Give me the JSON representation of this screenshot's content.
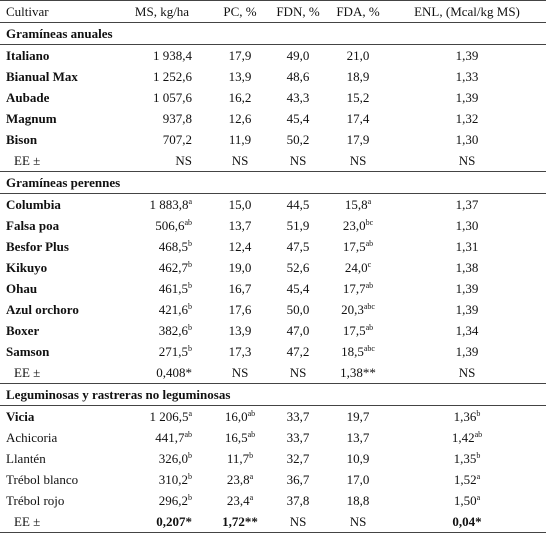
{
  "table": {
    "header": [
      "Cultivar",
      "MS, kg/ha",
      "PC, %",
      "FDN, %",
      "FDA, %",
      "ENL, (Mcal/kg MS)"
    ],
    "sections": [
      {
        "title": "Gramíneas anuales",
        "rows": [
          [
            "Italiano",
            "1 938,4",
            "17,9",
            "49,0",
            "21,0",
            "1,39"
          ],
          [
            "Bianual Max",
            "1 252,6",
            "13,9",
            "48,6",
            "18,9",
            "1,33"
          ],
          [
            "Aubade",
            "1 057,6",
            "16,2",
            "43,3",
            "15,2",
            "1,39"
          ],
          [
            "Magnum",
            "937,8",
            "12,6",
            "45,4",
            "17,4",
            "1,32"
          ],
          [
            "Bison",
            "707,2",
            "11,9",
            "50,2",
            "17,9",
            "1,30"
          ],
          [
            "EE ±",
            "NS",
            "NS",
            "NS",
            "NS",
            "NS"
          ]
        ]
      },
      {
        "title": "Gramíneas perennes",
        "rows": [
          [
            "Columbia",
            {
              "text": "1 883,8",
              "sup": "a"
            },
            "15,0",
            "44,5",
            {
              "text": "15,8",
              "sup": "a"
            },
            "1,37"
          ],
          [
            "Falsa poa",
            {
              "text": "506,6",
              "sup": "ab"
            },
            "13,7",
            "51,9",
            {
              "text": "23,0",
              "sup": "bc"
            },
            "1,30"
          ],
          [
            "Besfor Plus",
            {
              "text": "468,5",
              "sup": "b"
            },
            "12,4",
            "47,5",
            {
              "text": "17,5",
              "sup": "ab"
            },
            "1,31"
          ],
          [
            "Kikuyo",
            {
              "text": "462,7",
              "sup": "b"
            },
            "19,0",
            "52,6",
            {
              "text": "24,0",
              "sup": "c"
            },
            "1,38"
          ],
          [
            "Ohau",
            {
              "text": "461,5",
              "sup": "b"
            },
            "16,7",
            "45,4",
            {
              "text": "17,7",
              "sup": "ab"
            },
            "1,39"
          ],
          [
            "Azul orchoro",
            {
              "text": "421,6",
              "sup": "b"
            },
            "17,6",
            "50,0",
            {
              "text": "20,3",
              "sup": "abc"
            },
            "1,39"
          ],
          [
            "Boxer",
            {
              "text": "382,6",
              "sup": "b"
            },
            "13,9",
            "47,0",
            {
              "text": "17,5",
              "sup": "ab"
            },
            "1,34"
          ],
          [
            "Samson",
            {
              "text": "271,5",
              "sup": "b"
            },
            "17,3",
            "47,2",
            {
              "text": "18,5",
              "sup": "abc"
            },
            "1,39"
          ],
          [
            "EE ±",
            "0,408*",
            "NS",
            "NS",
            "1,38**",
            "NS"
          ]
        ]
      },
      {
        "title": "Leguminosas y rastreras no leguminosas",
        "rows": [
          [
            "Vicia",
            {
              "text": "1 206,5",
              "sup": "a"
            },
            {
              "text": "16,0",
              "sup": "ab"
            },
            "33,7",
            "19,7",
            {
              "text": "1,36",
              "sup": "b"
            }
          ],
          [
            "Achicoria",
            {
              "text": "441,7",
              "sup": "ab"
            },
            {
              "text": "16,5",
              "sup": "ab"
            },
            "33,7",
            "13,7",
            {
              "text": "1,42",
              "sup": "ab"
            }
          ],
          [
            "Llantén",
            {
              "text": "326,0",
              "sup": "b"
            },
            {
              "text": "11,7",
              "sup": "b"
            },
            "32,7",
            "10,9",
            {
              "text": "1,35",
              "sup": "b"
            }
          ],
          [
            "Trébol blanco",
            {
              "text": "310,2",
              "sup": "b"
            },
            {
              "text": "23,8",
              "sup": "a"
            },
            "36,7",
            "17,0",
            {
              "text": "1,52",
              "sup": "a"
            }
          ],
          [
            "Trébol rojo",
            {
              "text": "296,2",
              "sup": "b"
            },
            {
              "text": "23,4",
              "sup": "a"
            },
            "37,8",
            "18,8",
            {
              "text": "1,50",
              "sup": "a"
            }
          ],
          [
            "EE ±",
            "0,207*",
            "1,72**",
            "NS",
            "NS",
            "0,04*"
          ]
        ]
      }
    ]
  }
}
